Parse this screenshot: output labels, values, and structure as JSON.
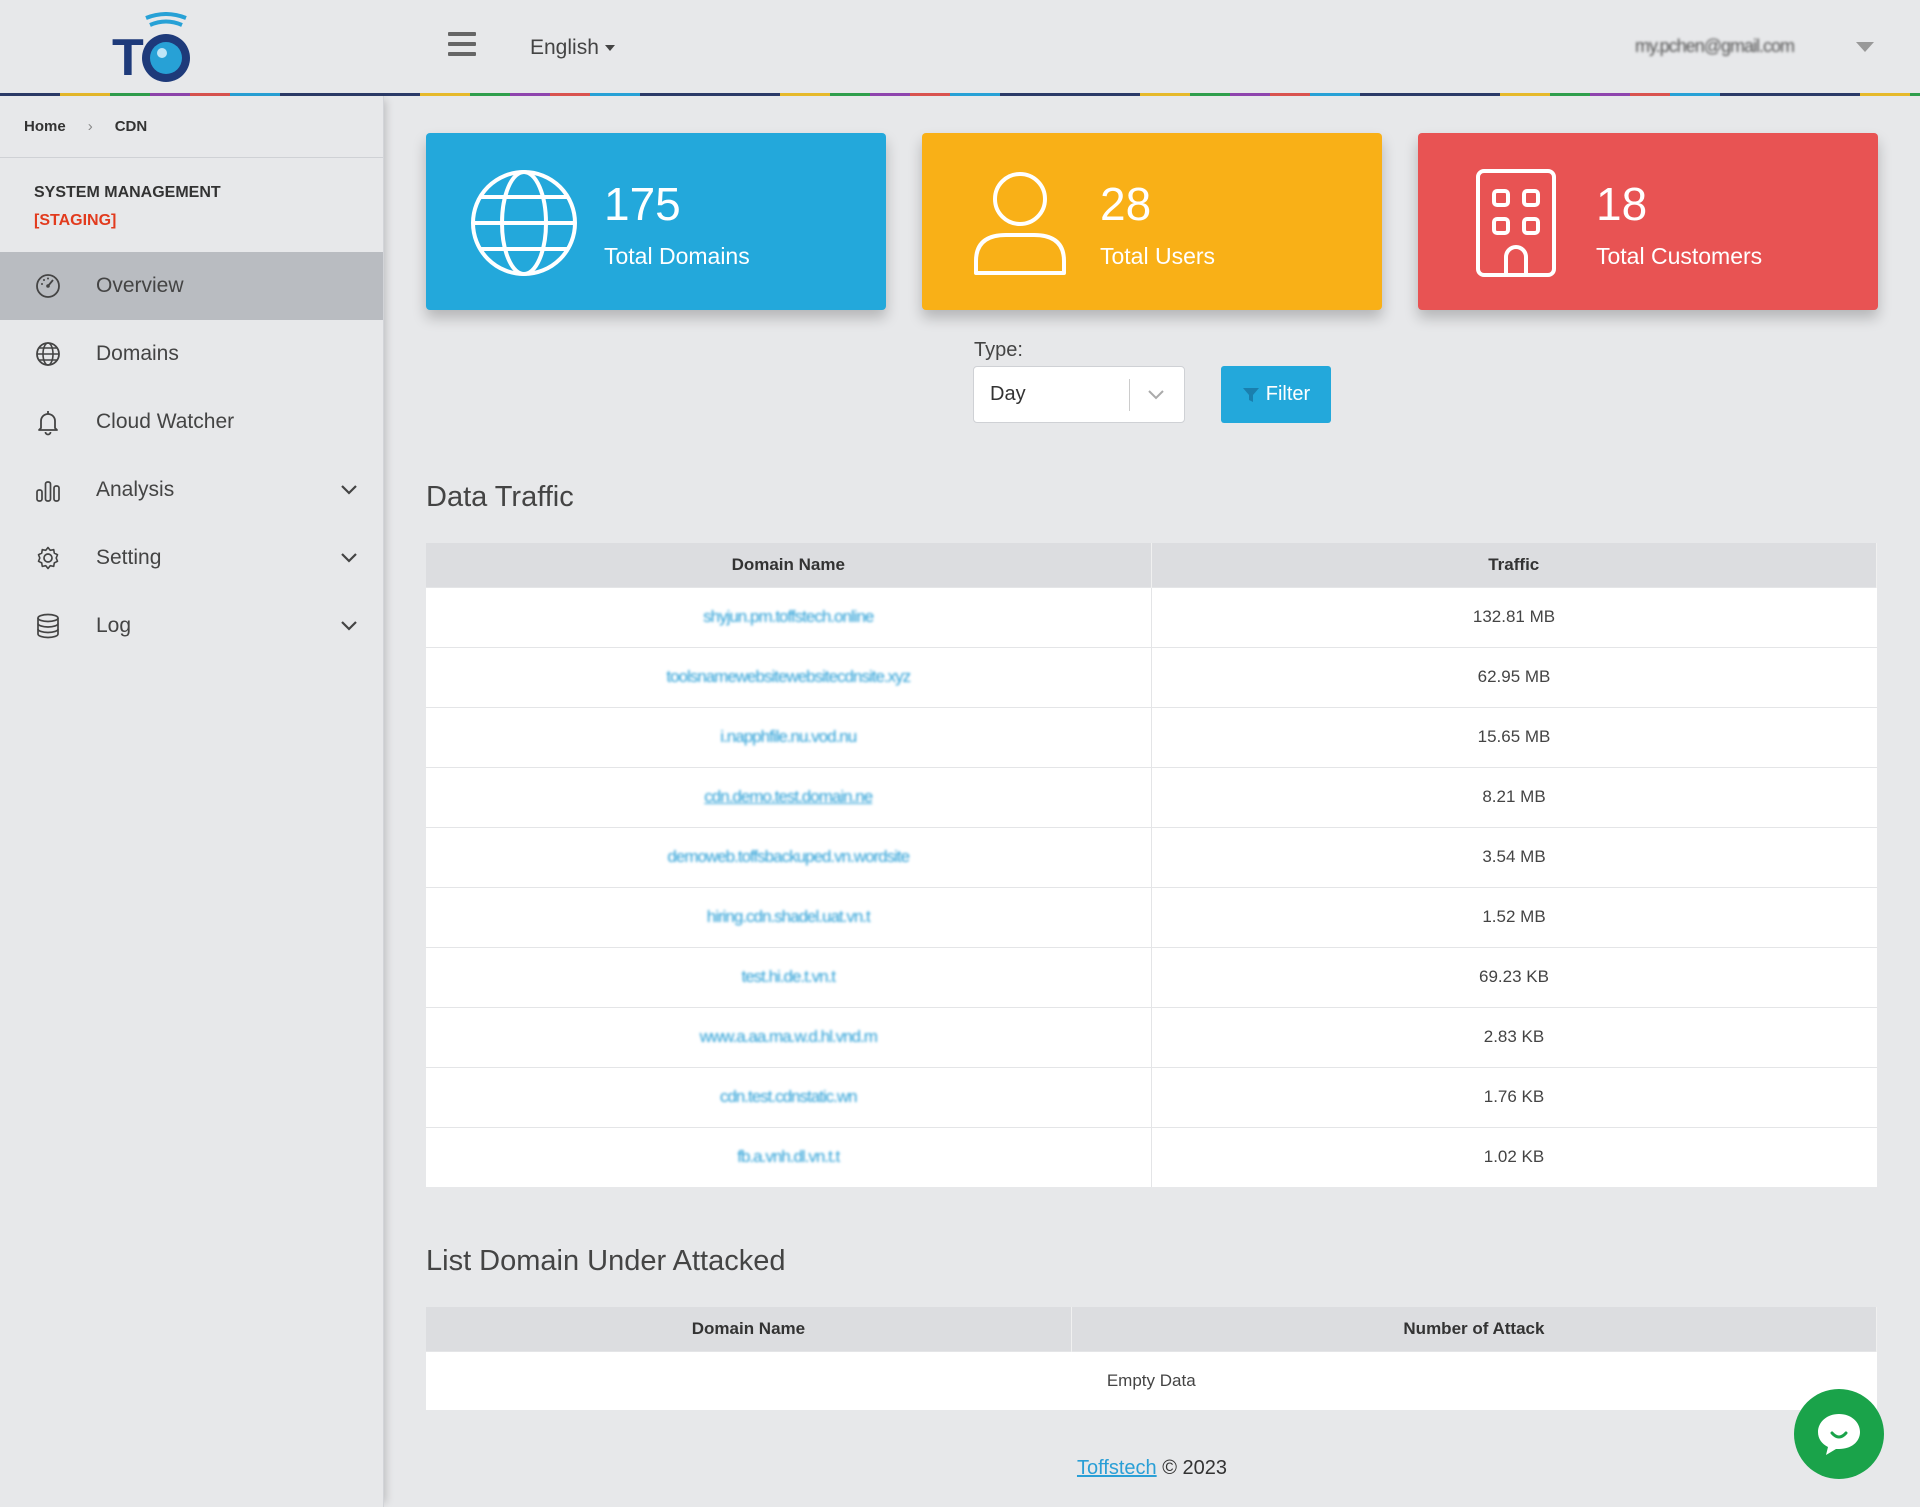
{
  "header": {
    "logo_text": "TOFFS",
    "language": "English",
    "user_email": "my.pchen@gmail.com"
  },
  "sidebar": {
    "breadcrumb": {
      "home": "Home",
      "current": "CDN"
    },
    "system_title": "SYSTEM MANAGEMENT",
    "environment": "[STAGING]",
    "items": [
      {
        "label": "Overview",
        "icon": "dashboard-icon",
        "active": true,
        "expandable": false
      },
      {
        "label": "Domains",
        "icon": "globe-icon",
        "active": false,
        "expandable": false
      },
      {
        "label": "Cloud Watcher",
        "icon": "bell-icon",
        "active": false,
        "expandable": false
      },
      {
        "label": "Analysis",
        "icon": "bar-chart-icon",
        "active": false,
        "expandable": true
      },
      {
        "label": "Setting",
        "icon": "gear-icon",
        "active": false,
        "expandable": true
      },
      {
        "label": "Log",
        "icon": "database-icon",
        "active": false,
        "expandable": true
      }
    ]
  },
  "stats": {
    "domains": {
      "value": "175",
      "label": "Total Domains",
      "color": "#23a8db"
    },
    "users": {
      "value": "28",
      "label": "Total Users",
      "color": "#f9b017"
    },
    "customers": {
      "value": "18",
      "label": "Total Customers",
      "color": "#e85353"
    }
  },
  "filter": {
    "type_label": "Type:",
    "type_value": "Day",
    "button_label": "Filter"
  },
  "traffic": {
    "title": "Data Traffic",
    "columns": [
      "Domain Name",
      "Traffic"
    ],
    "rows": [
      {
        "domain": "shyjun.pm.toffstech.online",
        "traffic": "132.81 MB"
      },
      {
        "domain": "toolsnamewebsitewebsitecdnsite.xyz",
        "traffic": "62.95 MB"
      },
      {
        "domain": "i.napphfile.nu.vod.nu",
        "traffic": "15.65 MB"
      },
      {
        "domain": "cdn.demo.test.domain.ne",
        "traffic": "8.21 MB"
      },
      {
        "domain": "demoweb.toffsbackuped.vn.wordsite",
        "traffic": "3.54 MB"
      },
      {
        "domain": "hiring.cdn.shadel.uat.vn.t",
        "traffic": "1.52 MB"
      },
      {
        "domain": "test.hi.de.t.vn.t",
        "traffic": "69.23 KB"
      },
      {
        "domain": "www.a.aa.ma.w.d.hl.vnd.m",
        "traffic": "2.83 KB"
      },
      {
        "domain": "cdn.test.cdnstatic.wn",
        "traffic": "1.76 KB"
      },
      {
        "domain": "fb.a.vnh.dl.vn.t.t",
        "traffic": "1.02 KB"
      }
    ]
  },
  "attacked": {
    "title": "List Domain Under Attacked",
    "columns": [
      "Domain Name",
      "Number of Attack"
    ],
    "empty_text": "Empty Data"
  },
  "footer": {
    "link_text": "Toffstech",
    "copyright": "© 2023"
  },
  "chat": {
    "icon": "chat-bubble-icon"
  }
}
